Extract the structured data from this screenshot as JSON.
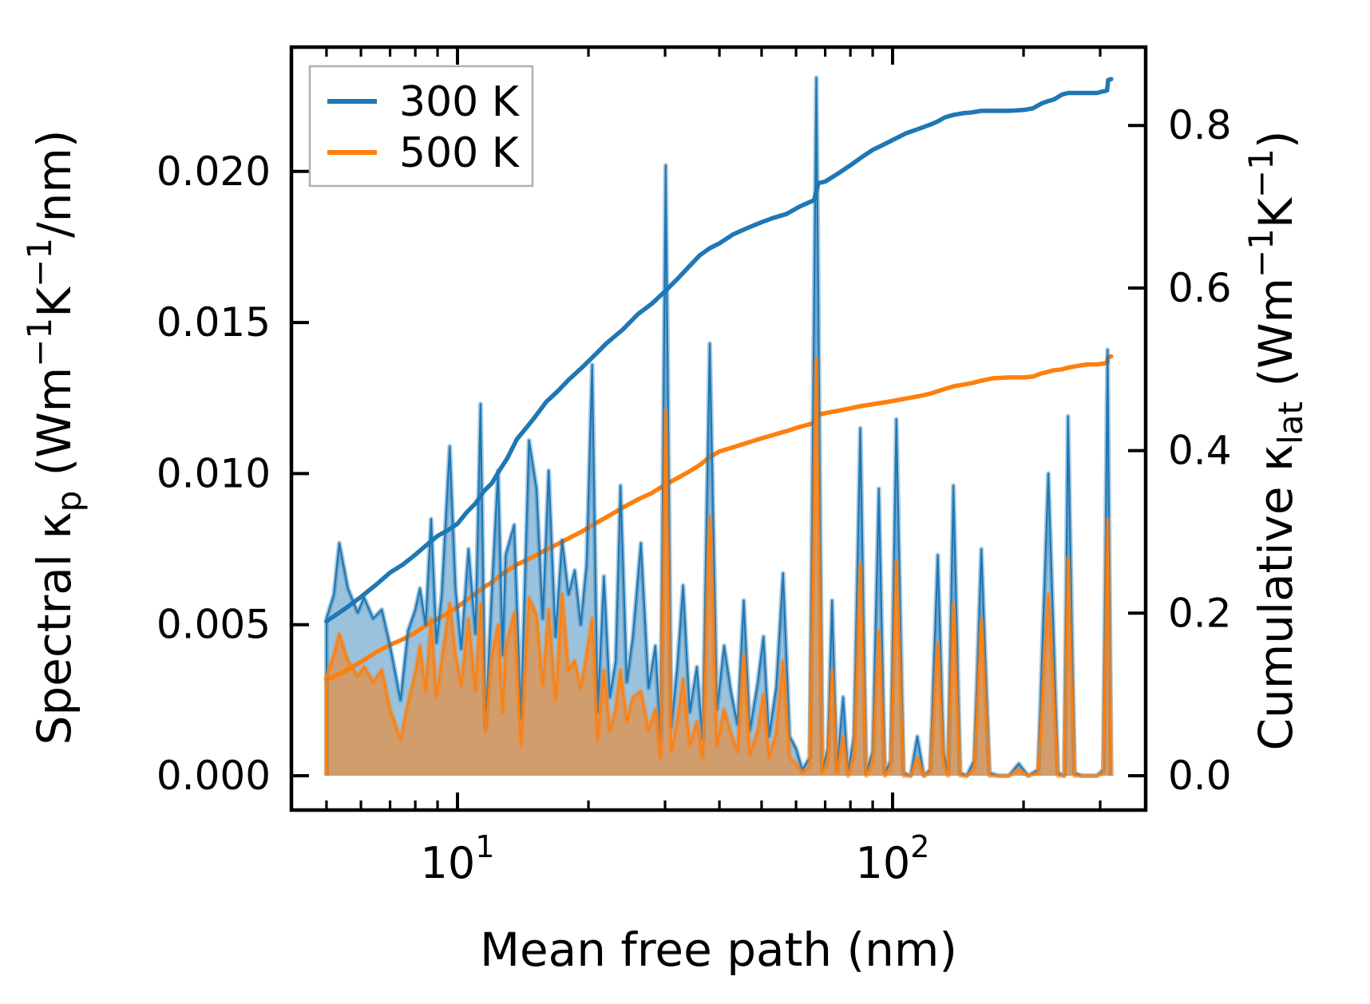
{
  "figure": {
    "xlabel": "Mean free path (nm)",
    "ylabel_left_parts": [
      [
        "Spectral κ",
        "n"
      ],
      [
        "p",
        "sub"
      ],
      [
        " (Wm",
        "n"
      ],
      [
        "−1",
        "sup"
      ],
      [
        "K",
        "n"
      ],
      [
        "−1",
        "sup"
      ],
      [
        "/nm)",
        "n"
      ]
    ],
    "ylabel_right_parts": [
      [
        "Cumulative κ",
        "n"
      ],
      [
        "lat",
        "sub"
      ],
      [
        " (Wm",
        "n"
      ],
      [
        "−1",
        "sup"
      ],
      [
        "K",
        "n"
      ],
      [
        "−1",
        "sup"
      ],
      [
        ")",
        "n"
      ]
    ],
    "x_ticks": {
      "major": [
        {
          "value": 10,
          "label_parts": [
            [
              "10",
              "n"
            ],
            [
              "1",
              "sup"
            ]
          ]
        },
        {
          "value": 100,
          "label_parts": [
            [
              "10",
              "n"
            ],
            [
              "2",
              "sup"
            ]
          ]
        }
      ],
      "minor": [
        5,
        6,
        7,
        8,
        9,
        20,
        30,
        40,
        50,
        60,
        70,
        80,
        90,
        200,
        300
      ]
    },
    "y_ticks_left": [
      {
        "value": 0.0,
        "label": "0.000"
      },
      {
        "value": 0.005,
        "label": "0.005"
      },
      {
        "value": 0.01,
        "label": "0.010"
      },
      {
        "value": 0.015,
        "label": "0.015"
      },
      {
        "value": 0.02,
        "label": "0.020"
      }
    ],
    "y_ticks_right": [
      {
        "value": 0.0,
        "label": "0.0"
      },
      {
        "value": 0.2,
        "label": "0.2"
      },
      {
        "value": 0.4,
        "label": "0.4"
      },
      {
        "value": 0.6,
        "label": "0.6"
      },
      {
        "value": 0.8,
        "label": "0.8"
      }
    ],
    "legend": {
      "entries": [
        {
          "label": "300 K",
          "color": "#1f77b4"
        },
        {
          "label": "500 K",
          "color": "#ff7f0e"
        }
      ]
    },
    "colors": {
      "c300": "#1f77b4",
      "c500": "#ff7f0e",
      "fill300": "rgba(31,119,180,0.45)",
      "fill500": "rgba(255,127,14,0.55)",
      "halo300": "rgba(31,119,180,0.38)",
      "halo500": "rgba(255,127,14,0.42)",
      "spine": "#000000",
      "legend_edge": "#b0b0b0"
    }
  },
  "chart_data": {
    "type": "area+line",
    "title": "",
    "x_scale": "log",
    "xlabel": "Mean free path (nm)",
    "ylabel_left": "Spectral κp (Wm−1K−1/nm)",
    "ylabel_right": "Cumulative κlat (Wm−1K−1)",
    "xlim": [
      4.15,
      382
    ],
    "ylim_left": [
      -0.00114,
      0.02412
    ],
    "ylim_right": [
      -0.0422,
      0.8965
    ],
    "grid": false,
    "legend_position": "upper left",
    "spectral": {
      "description": "Spiky spectral thermal conductivity (left axis), filled to zero",
      "columns": [
        "mfp_nm",
        "300 K",
        "500 K"
      ],
      "points": [
        [
          5.0,
          0.0052,
          0.0033
        ],
        [
          5.2,
          0.006,
          0.004
        ],
        [
          5.35,
          0.0077,
          0.0047
        ],
        [
          5.6,
          0.0062,
          0.0038
        ],
        [
          5.9,
          0.0054,
          0.0033
        ],
        [
          6.1,
          0.0059,
          0.0036
        ],
        [
          6.4,
          0.0052,
          0.0031
        ],
        [
          6.7,
          0.0055,
          0.0035
        ],
        [
          7.0,
          0.0043,
          0.0022
        ],
        [
          7.2,
          0.0034,
          0.0017
        ],
        [
          7.4,
          0.0025,
          0.0012
        ],
        [
          7.7,
          0.0048,
          0.0024
        ],
        [
          8.0,
          0.0055,
          0.0034
        ],
        [
          8.2,
          0.0062,
          0.0043
        ],
        [
          8.45,
          0.005,
          0.0028
        ],
        [
          8.7,
          0.0085,
          0.0052
        ],
        [
          8.95,
          0.0044,
          0.0026
        ],
        [
          9.2,
          0.006,
          0.0038
        ],
        [
          9.6,
          0.0109,
          0.0057
        ],
        [
          9.9,
          0.0062,
          0.004
        ],
        [
          10.2,
          0.0042,
          0.003
        ],
        [
          10.6,
          0.0075,
          0.0052
        ],
        [
          11.0,
          0.0047,
          0.0028
        ],
        [
          11.3,
          0.0123,
          0.0057
        ],
        [
          11.6,
          0.0016,
          0.0015
        ],
        [
          12.0,
          0.0062,
          0.004
        ],
        [
          12.4,
          0.0101,
          0.005
        ],
        [
          12.7,
          0.004,
          0.0021
        ],
        [
          12.9,
          0.0073,
          0.0042
        ],
        [
          13.5,
          0.0083,
          0.0054
        ],
        [
          14.0,
          0.0019,
          0.001
        ],
        [
          14.6,
          0.0111,
          0.0059
        ],
        [
          15.2,
          0.0095,
          0.0053
        ],
        [
          15.7,
          0.0052,
          0.003
        ],
        [
          16.2,
          0.0101,
          0.0055
        ],
        [
          16.8,
          0.0046,
          0.0025
        ],
        [
          17.4,
          0.0078,
          0.006
        ],
        [
          18.0,
          0.006,
          0.0035
        ],
        [
          18.6,
          0.0068,
          0.0038
        ],
        [
          19.2,
          0.005,
          0.0029
        ],
        [
          19.8,
          0.007,
          0.004
        ],
        [
          20.4,
          0.0136,
          0.0052
        ],
        [
          21.0,
          0.0021,
          0.0012
        ],
        [
          21.7,
          0.0066,
          0.0035
        ],
        [
          22.4,
          0.0026,
          0.0015
        ],
        [
          23.1,
          0.0038,
          0.0022
        ],
        [
          23.7,
          0.0096,
          0.0035
        ],
        [
          24.5,
          0.0031,
          0.0018
        ],
        [
          25.3,
          0.0046,
          0.0026
        ],
        [
          26.4,
          0.0077,
          0.0028
        ],
        [
          27.5,
          0.0029,
          0.0015
        ],
        [
          28.5,
          0.0043,
          0.0022
        ],
        [
          29.3,
          0.0012,
          0.0006
        ],
        [
          30.1,
          0.0202,
          0.0121
        ],
        [
          31.0,
          0.0016,
          0.0008
        ],
        [
          32.0,
          0.0036,
          0.0018
        ],
        [
          33.0,
          0.0063,
          0.0032
        ],
        [
          34.2,
          0.0021,
          0.001
        ],
        [
          35.5,
          0.0036,
          0.0018
        ],
        [
          36.6,
          0.0012,
          0.0006
        ],
        [
          38.0,
          0.0143,
          0.0086
        ],
        [
          39.5,
          0.0022,
          0.001
        ],
        [
          41.0,
          0.0043,
          0.0022
        ],
        [
          42.5,
          0.0028,
          0.0014
        ],
        [
          44.0,
          0.0017,
          0.0008
        ],
        [
          45.5,
          0.0058,
          0.004
        ],
        [
          47.0,
          0.0015,
          0.0007
        ],
        [
          49.0,
          0.0031,
          0.0015
        ],
        [
          50.5,
          0.0046,
          0.0027
        ],
        [
          52.0,
          0.0013,
          0.0006
        ],
        [
          54.0,
          0.0029,
          0.0014
        ],
        [
          56.0,
          0.0067,
          0.0038
        ],
        [
          58.0,
          0.0013,
          0.0006
        ],
        [
          60.0,
          0.0009,
          0.0004
        ],
        [
          62.0,
          0.0002,
          0.0001
        ],
        [
          64.5,
          0.0006,
          0.0003
        ],
        [
          66.8,
          0.0231,
          0.0138
        ],
        [
          69.0,
          0.0002,
          0.0001
        ],
        [
          71.0,
          0.0009,
          0.0004
        ],
        [
          72.6,
          0.0058,
          0.0035
        ],
        [
          74.5,
          0.0002,
          0.0001
        ],
        [
          77.0,
          0.0026,
          0.0013
        ],
        [
          79.0,
          0.0001,
          0.0
        ],
        [
          81.5,
          0.0013,
          0.0006
        ],
        [
          84.3,
          0.0115,
          0.007
        ],
        [
          87.0,
          0.0001,
          0.0
        ],
        [
          90.0,
          0.0008,
          0.0004
        ],
        [
          93.0,
          0.0095,
          0.0048
        ],
        [
          96.0,
          0.0001,
          0.0
        ],
        [
          99.0,
          0.0005,
          0.0002
        ],
        [
          102.0,
          0.0118,
          0.0071
        ],
        [
          106.0,
          0.0001,
          0.0
        ],
        [
          110.0,
          0.0,
          0.0
        ],
        [
          114.0,
          0.0013,
          0.0006
        ],
        [
          118.0,
          0.0,
          0.0
        ],
        [
          122.0,
          0.0002,
          0.0001
        ],
        [
          127.0,
          0.0073,
          0.0044
        ],
        [
          131.0,
          0.0008,
          0.0004
        ],
        [
          134.0,
          0.0001,
          0.0
        ],
        [
          138.0,
          0.0096,
          0.0057
        ],
        [
          143.0,
          0.0001,
          0.0
        ],
        [
          148.0,
          0.0,
          0.0
        ],
        [
          154.0,
          0.0005,
          0.0002
        ],
        [
          160.0,
          0.0075,
          0.0052
        ],
        [
          167.0,
          0.0001,
          0.0
        ],
        [
          175.0,
          0.0,
          0.0
        ],
        [
          185.0,
          0.0,
          0.0
        ],
        [
          195.0,
          0.0004,
          0.0002
        ],
        [
          205.0,
          0.0,
          0.0
        ],
        [
          216.0,
          0.0002,
          0.0001
        ],
        [
          228.0,
          0.01,
          0.006
        ],
        [
          240.0,
          0.0001,
          0.0
        ],
        [
          248.0,
          0.0,
          0.0
        ],
        [
          253.0,
          0.0119,
          0.0072
        ],
        [
          262.0,
          0.0001,
          0.0
        ],
        [
          272.0,
          0.0,
          0.0
        ],
        [
          283.0,
          0.0,
          0.0
        ],
        [
          295.0,
          0.0,
          0.0
        ],
        [
          305.0,
          0.0002,
          0.0001
        ],
        [
          312.0,
          0.0141,
          0.0085
        ],
        [
          318.0,
          0.0,
          0.0
        ]
      ]
    },
    "cumulative": {
      "description": "Cumulative lattice thermal conductivity (right axis)",
      "columns": [
        "mfp_nm",
        "300 K",
        "500 K"
      ],
      "points": [
        [
          5.0,
          0.19,
          0.118
        ],
        [
          5.5,
          0.205,
          0.128
        ],
        [
          6.0,
          0.22,
          0.14
        ],
        [
          6.5,
          0.235,
          0.152
        ],
        [
          7.0,
          0.25,
          0.161
        ],
        [
          7.5,
          0.26,
          0.168
        ],
        [
          8.0,
          0.272,
          0.176
        ],
        [
          8.5,
          0.284,
          0.186
        ],
        [
          9.0,
          0.295,
          0.193
        ],
        [
          9.5,
          0.302,
          0.2
        ],
        [
          10.0,
          0.31,
          0.208
        ],
        [
          10.5,
          0.324,
          0.216
        ],
        [
          11.0,
          0.335,
          0.224
        ],
        [
          11.5,
          0.35,
          0.232
        ],
        [
          12.0,
          0.36,
          0.238
        ],
        [
          12.5,
          0.376,
          0.246
        ],
        [
          13.0,
          0.39,
          0.252
        ],
        [
          13.7,
          0.414,
          0.26
        ],
        [
          14.5,
          0.43,
          0.266
        ],
        [
          15.0,
          0.44,
          0.27
        ],
        [
          16.0,
          0.46,
          0.278
        ],
        [
          17.0,
          0.473,
          0.285
        ],
        [
          18.0,
          0.487,
          0.292
        ],
        [
          19.4,
          0.503,
          0.301
        ],
        [
          21.0,
          0.521,
          0.312
        ],
        [
          22.0,
          0.532,
          0.318
        ],
        [
          24.0,
          0.549,
          0.33
        ],
        [
          26.0,
          0.568,
          0.34
        ],
        [
          28.0,
          0.581,
          0.348
        ],
        [
          30.0,
          0.596,
          0.358
        ],
        [
          32.0,
          0.611,
          0.366
        ],
        [
          34.0,
          0.626,
          0.374
        ],
        [
          36.0,
          0.64,
          0.382
        ],
        [
          38.0,
          0.649,
          0.392
        ],
        [
          40.0,
          0.655,
          0.399
        ],
        [
          43.0,
          0.666,
          0.404
        ],
        [
          46.0,
          0.673,
          0.409
        ],
        [
          50.0,
          0.681,
          0.415
        ],
        [
          53.0,
          0.686,
          0.419
        ],
        [
          57.0,
          0.691,
          0.424
        ],
        [
          61.0,
          0.7,
          0.429
        ],
        [
          64.0,
          0.705,
          0.432
        ],
        [
          66.0,
          0.708,
          0.434
        ],
        [
          67.5,
          0.729,
          0.444
        ],
        [
          70.0,
          0.731,
          0.446
        ],
        [
          75.0,
          0.741,
          0.449
        ],
        [
          80.0,
          0.751,
          0.452
        ],
        [
          85.0,
          0.761,
          0.455
        ],
        [
          90.0,
          0.77,
          0.457
        ],
        [
          95.0,
          0.776,
          0.459
        ],
        [
          100.0,
          0.782,
          0.461
        ],
        [
          107.0,
          0.79,
          0.464
        ],
        [
          115.0,
          0.796,
          0.467
        ],
        [
          122.0,
          0.801,
          0.47
        ],
        [
          127.0,
          0.805,
          0.473
        ],
        [
          132.0,
          0.81,
          0.476
        ],
        [
          138.0,
          0.813,
          0.479
        ],
        [
          145.0,
          0.815,
          0.481
        ],
        [
          152.0,
          0.816,
          0.483
        ],
        [
          160.0,
          0.818,
          0.486
        ],
        [
          170.0,
          0.818,
          0.489
        ],
        [
          185.0,
          0.818,
          0.49
        ],
        [
          200.0,
          0.819,
          0.49
        ],
        [
          210.0,
          0.821,
          0.491
        ],
        [
          220.0,
          0.827,
          0.495
        ],
        [
          228.0,
          0.83,
          0.497
        ],
        [
          235.0,
          0.832,
          0.499
        ],
        [
          245.0,
          0.838,
          0.5
        ],
        [
          253.0,
          0.84,
          0.502
        ],
        [
          265.0,
          0.84,
          0.504
        ],
        [
          280.0,
          0.84,
          0.506
        ],
        [
          295.0,
          0.84,
          0.506
        ],
        [
          305.0,
          0.842,
          0.507
        ],
        [
          311.0,
          0.843,
          0.508
        ],
        [
          313.0,
          0.856,
          0.515
        ],
        [
          318.0,
          0.857,
          0.516
        ]
      ]
    }
  }
}
